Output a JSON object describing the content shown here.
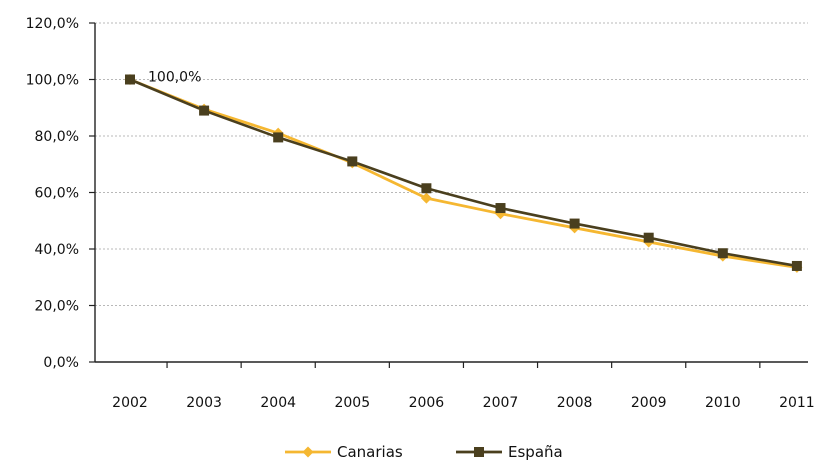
{
  "chart_data": {
    "type": "line",
    "categories": [
      "2002",
      "2003",
      "2004",
      "2005",
      "2006",
      "2007",
      "2008",
      "2009",
      "2010",
      "2011"
    ],
    "ylim": [
      0,
      120
    ],
    "yticks": [
      0,
      20,
      40,
      60,
      80,
      100,
      120
    ],
    "ytick_labels": [
      "0,0%",
      "20,0%",
      "40,0%",
      "60,0%",
      "80,0%",
      "100,0%",
      "120,0%"
    ],
    "grid": true,
    "legend_position": "bottom",
    "series": [
      {
        "name": "Canarias",
        "color": "#F5B731",
        "marker": "diamond",
        "values": [
          100.0,
          89.5,
          81.0,
          70.5,
          58.0,
          52.5,
          47.5,
          42.5,
          37.5,
          33.5
        ]
      },
      {
        "name": "España",
        "color": "#4A3F1E",
        "marker": "square",
        "values": [
          100.0,
          89.0,
          79.5,
          71.0,
          61.5,
          54.5,
          49.0,
          44.0,
          38.5,
          34.0
        ]
      }
    ],
    "annotations": [
      {
        "text": "100,0%",
        "category": "2002",
        "value": 100.0
      }
    ]
  }
}
